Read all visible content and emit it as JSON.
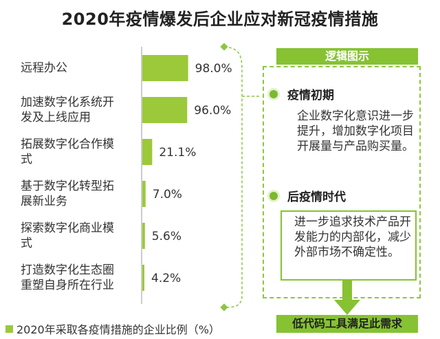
{
  "title": "2020年疫情爆发后企业应对新冠疫情措施",
  "colors": {
    "bar": "#9bc93a",
    "accent": "#86c232",
    "dashed": "#8cc63f"
  },
  "chart_data": {
    "type": "bar",
    "orientation": "horizontal",
    "categories": [
      "远程办公",
      "加速数字化系统开发及上线应用",
      "拓展数字化合作模式",
      "基于数字化转型拓展新业务",
      "探索数字化商业模式",
      "打造数字化生态圈重塑自身所在行业"
    ],
    "category_lines": [
      [
        "远程办公"
      ],
      [
        "加速数字化系统开",
        "发及上线应用"
      ],
      [
        "拓展数字化合作模",
        "式"
      ],
      [
        "基于数字化转型拓",
        "展新业务"
      ],
      [
        "探索数字化商业模",
        "式"
      ],
      [
        "打造数字化生态圈",
        "重塑自身所在行业"
      ]
    ],
    "values": [
      98.0,
      96.0,
      21.1,
      7.0,
      5.6,
      4.2
    ],
    "value_labels": [
      "98.0%",
      "96.0%",
      "21.1%",
      "7.0%",
      "5.6%",
      "4.2%"
    ],
    "xlim": [
      0,
      100
    ],
    "grid": false,
    "legend": {
      "label": "2020年采取各疫情措施的企业比例（%）",
      "placement": "bottom-left"
    }
  },
  "logic_panel": {
    "header": "逻辑图示",
    "stage1": {
      "title": "疫情初期",
      "text": "企业数字化意识进一步提升，增加数字化项目开展量与产品购买量。"
    },
    "stage2": {
      "title": "后疫情时代",
      "text": "进一步追求技术产品开发能力的内部化，减少外部市场不确定性。"
    },
    "conclusion": "低代码工具满足此需求"
  }
}
